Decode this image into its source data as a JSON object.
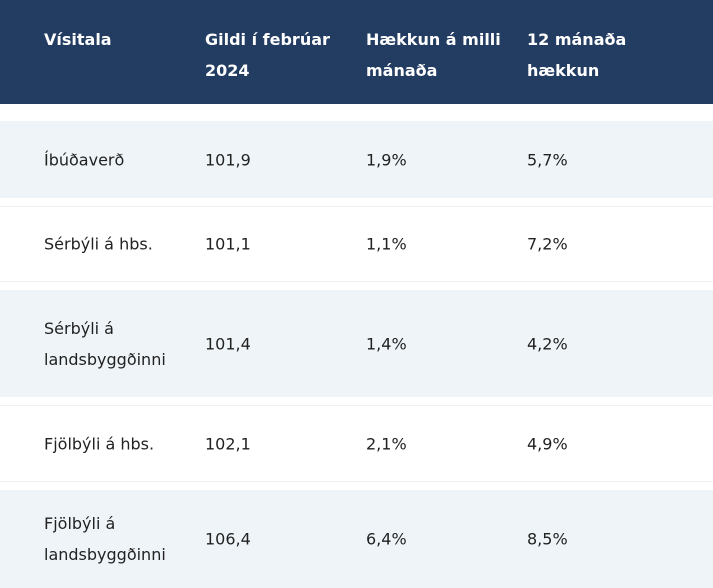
{
  "table": {
    "header": [
      "Vísitala",
      "Gildi í febrúar 2024",
      "Hækkun á milli mánaða",
      "12 mánaða hækkun"
    ],
    "rows": [
      [
        "Íbúðaverð",
        "101,9",
        "1,9%",
        "5,7%"
      ],
      [
        "Sérbýli á hbs.",
        "101,1",
        "1,1%",
        "7,2%"
      ],
      [
        "Sérbýli á landsbyggðinni",
        "101,4",
        "1,4%",
        "4,2%"
      ],
      [
        "Fjölbýli á hbs.",
        "102,1",
        "2,1%",
        "4,9%"
      ],
      [
        "Fjölbýli á landsbyggðinni",
        "106,4",
        "6,4%",
        "8,5%"
      ]
    ]
  }
}
